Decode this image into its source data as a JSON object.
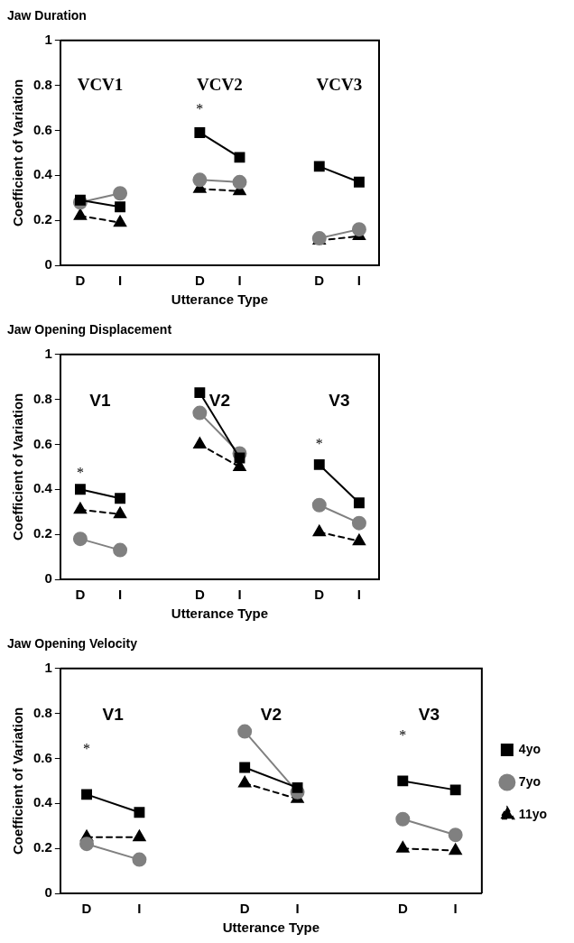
{
  "chart_data": [
    {
      "type": "line",
      "title": "Jaw Duration",
      "xlabel": "Utterance Type",
      "ylabel": "Coefficient of Variation",
      "categories": [
        "D",
        "I",
        null,
        "D",
        "I",
        null,
        "D",
        "I"
      ],
      "series": [
        {
          "color": "#000000",
          "marker": "square",
          "line_style": "solid",
          "values": [
            0.29,
            0.26,
            null,
            0.59,
            0.48,
            null,
            0.44,
            0.37
          ]
        },
        {
          "color": "#808080",
          "marker": "circle",
          "line_style": "solid",
          "values": [
            0.28,
            0.32,
            null,
            0.38,
            0.37,
            null,
            0.12,
            0.16
          ]
        },
        {
          "color": "#000000",
          "marker": "triangle",
          "line_style": "dashed",
          "values": [
            0.22,
            0.19,
            null,
            0.34,
            0.33,
            null,
            0.11,
            0.13
          ]
        }
      ],
      "ylim": [
        0,
        1
      ],
      "yticks": [
        0,
        0.2,
        0.4,
        0.6,
        0.8,
        1
      ],
      "grid": false,
      "legend": false,
      "annotations": [
        "VCV1",
        "VCV2",
        "*",
        "VCV3"
      ]
    },
    {
      "type": "line",
      "title": "Jaw Opening Displacement",
      "xlabel": "Utterance Type",
      "ylabel": "Coefficient of Variation",
      "categories": [
        "D",
        "I",
        null,
        "D",
        "I",
        null,
        "D",
        "I"
      ],
      "series": [
        {
          "color": "#000000",
          "marker": "square",
          "line_style": "solid",
          "values": [
            0.4,
            0.36,
            null,
            0.83,
            0.54,
            null,
            0.51,
            0.34
          ]
        },
        {
          "color": "#808080",
          "marker": "circle",
          "line_style": "solid",
          "values": [
            0.18,
            0.13,
            null,
            0.74,
            0.56,
            null,
            0.33,
            0.25
          ]
        },
        {
          "color": "#000000",
          "marker": "triangle",
          "line_style": "dashed",
          "values": [
            0.31,
            0.29,
            null,
            0.6,
            0.5,
            null,
            0.21,
            0.17
          ]
        }
      ],
      "ylim": [
        0,
        1
      ],
      "yticks": [
        0,
        0.2,
        0.4,
        0.6,
        0.8,
        1
      ],
      "grid": false,
      "legend": false,
      "annotations": [
        "V1",
        "*",
        "V2",
        "V3",
        "*"
      ]
    },
    {
      "type": "line",
      "title": "Jaw Opening Velocity",
      "xlabel": "Utterance Type",
      "ylabel": "Coefficient of Variation",
      "categories": [
        "D",
        "I",
        null,
        "D",
        "I",
        null,
        "D",
        "I"
      ],
      "series": [
        {
          "name": "4yo",
          "color": "#000000",
          "marker": "square",
          "line_style": "solid",
          "values": [
            0.44,
            0.36,
            null,
            0.56,
            0.47,
            null,
            0.5,
            0.46
          ]
        },
        {
          "name": "7yo",
          "color": "#808080",
          "marker": "circle",
          "line_style": "solid",
          "values": [
            0.22,
            0.15,
            null,
            0.72,
            0.45,
            null,
            0.33,
            0.26
          ]
        },
        {
          "name": "11yo",
          "color": "#000000",
          "marker": "triangle",
          "line_style": "dashed",
          "values": [
            0.25,
            0.25,
            null,
            0.49,
            0.42,
            null,
            0.2,
            0.19
          ]
        }
      ],
      "ylim": [
        0,
        1
      ],
      "yticks": [
        0,
        0.2,
        0.4,
        0.6,
        0.8,
        1
      ],
      "grid": false,
      "legend": "right",
      "annotations": [
        "V1",
        "*",
        "V2",
        "V3",
        "*"
      ]
    }
  ]
}
